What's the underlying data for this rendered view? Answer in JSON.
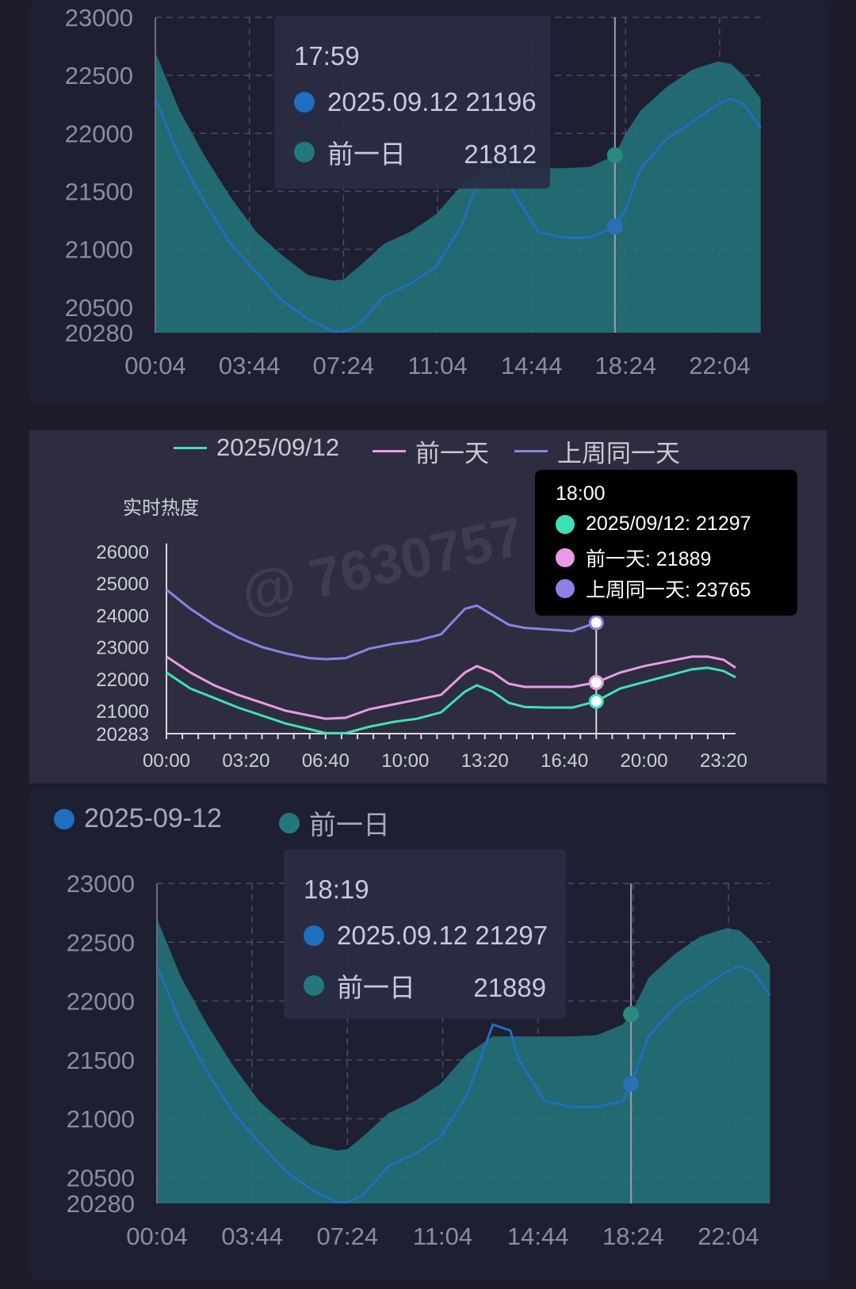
{
  "chart_data": [
    {
      "type": "area",
      "x_ticks": [
        "00:04",
        "03:44",
        "07:24",
        "11:04",
        "14:44",
        "18:24",
        "22:04"
      ],
      "y_ticks": [
        23000,
        22500,
        22000,
        21500,
        21000,
        20500,
        20280
      ],
      "ylim": [
        20280,
        23000
      ],
      "grid": true,
      "series": [
        {
          "name": "2025.09.12",
          "color": "#1f6fc0",
          "x": [
            "00:04",
            "01:00",
            "02:00",
            "03:00",
            "04:00",
            "05:00",
            "06:00",
            "07:00",
            "07:24",
            "08:00",
            "09:00",
            "10:00",
            "11:00",
            "12:00",
            "13:00",
            "13:40",
            "14:00",
            "15:00",
            "16:00",
            "17:00",
            "17:59",
            "18:24",
            "19:00",
            "20:00",
            "21:00",
            "22:00",
            "22:30",
            "23:00",
            "23:40"
          ],
          "values": [
            22300,
            21800,
            21400,
            21050,
            20800,
            20560,
            20400,
            20290,
            20290,
            20350,
            20600,
            20700,
            20850,
            21200,
            21800,
            21750,
            21500,
            21150,
            21100,
            21100,
            21196,
            21350,
            21700,
            21950,
            22100,
            22250,
            22300,
            22250,
            22050
          ]
        },
        {
          "name": "前一日",
          "color": "#24777d",
          "x": [
            "00:04",
            "01:00",
            "02:00",
            "03:00",
            "04:00",
            "05:00",
            "06:00",
            "07:00",
            "07:24",
            "08:00",
            "09:00",
            "10:00",
            "11:00",
            "12:00",
            "13:00",
            "14:00",
            "15:00",
            "16:00",
            "17:00",
            "17:59",
            "18:24",
            "19:00",
            "20:00",
            "21:00",
            "22:00",
            "22:30",
            "23:00",
            "23:40"
          ],
          "values": [
            22700,
            22200,
            21800,
            21450,
            21150,
            20950,
            20780,
            20730,
            20740,
            20850,
            21050,
            21150,
            21300,
            21550,
            21700,
            21700,
            21700,
            21700,
            21710,
            21812,
            22000,
            22200,
            22400,
            22550,
            22620,
            22600,
            22500,
            22300
          ]
        }
      ],
      "tooltip": {
        "time": "17:59",
        "rows": [
          {
            "label": "2025.09.12 21196"
          },
          {
            "label": "前一日        21812"
          }
        ]
      }
    },
    {
      "type": "line",
      "ylabel": "实时热度",
      "x_ticks": [
        "00:00",
        "03:20",
        "06:40",
        "10:00",
        "13:20",
        "16:40",
        "20:00",
        "23:20"
      ],
      "y_ticks": [
        26000,
        25000,
        24000,
        23000,
        22000,
        21000,
        20283
      ],
      "ylim": [
        20283,
        26000
      ],
      "series": [
        {
          "name": "2025/09/12",
          "color": "#3fe0b6",
          "x": [
            "00:00",
            "01:00",
            "02:00",
            "03:00",
            "04:00",
            "05:00",
            "06:00",
            "06:40",
            "07:30",
            "08:30",
            "09:30",
            "10:30",
            "11:30",
            "12:30",
            "13:00",
            "13:40",
            "14:20",
            "15:00",
            "16:00",
            "17:00",
            "18:00",
            "19:00",
            "20:00",
            "21:00",
            "22:00",
            "22:40",
            "23:20",
            "23:50"
          ],
          "values": [
            22200,
            21700,
            21400,
            21100,
            20850,
            20600,
            20420,
            20300,
            20300,
            20500,
            20650,
            20750,
            20950,
            21600,
            21800,
            21600,
            21250,
            21120,
            21100,
            21100,
            21297,
            21700,
            21900,
            22100,
            22300,
            22350,
            22250,
            22050
          ]
        },
        {
          "name": "前一天",
          "color": "#e89be3",
          "x": [
            "00:00",
            "01:00",
            "02:00",
            "03:00",
            "04:00",
            "05:00",
            "06:00",
            "06:40",
            "07:30",
            "08:30",
            "09:30",
            "10:30",
            "11:30",
            "12:30",
            "13:00",
            "13:40",
            "14:20",
            "15:00",
            "16:00",
            "17:00",
            "18:00",
            "19:00",
            "20:00",
            "21:00",
            "22:00",
            "22:40",
            "23:20",
            "23:50"
          ],
          "values": [
            22700,
            22200,
            21800,
            21500,
            21250,
            21000,
            20850,
            20750,
            20780,
            21050,
            21200,
            21350,
            21500,
            22200,
            22400,
            22200,
            21850,
            21750,
            21750,
            21750,
            21889,
            22200,
            22400,
            22550,
            22700,
            22700,
            22600,
            22350
          ]
        },
        {
          "name": "上周同一天",
          "color": "#8a82e6",
          "x": [
            "00:00",
            "01:00",
            "02:00",
            "03:00",
            "04:00",
            "05:00",
            "06:00",
            "06:40",
            "07:30",
            "08:30",
            "09:30",
            "10:30",
            "11:30",
            "12:30",
            "13:00",
            "13:40",
            "14:20",
            "15:00",
            "16:00",
            "17:00",
            "18:00"
          ],
          "values": [
            24800,
            24200,
            23700,
            23300,
            23000,
            22800,
            22650,
            22620,
            22650,
            22950,
            23100,
            23200,
            23400,
            24200,
            24300,
            24000,
            23700,
            23600,
            23550,
            23500,
            23765
          ]
        }
      ],
      "tooltip": {
        "time": "18:00",
        "rows": [
          {
            "label": "2025/09/12: 21297"
          },
          {
            "label": "前一天: 21889"
          },
          {
            "label": "上周同一天: 23765"
          }
        ]
      },
      "watermark": "@ 7630757"
    },
    {
      "type": "area",
      "legend": [
        "2025-09-12",
        "前一日"
      ],
      "x_ticks": [
        "00:04",
        "03:44",
        "07:24",
        "11:04",
        "14:44",
        "18:24",
        "22:04"
      ],
      "y_ticks": [
        23000,
        22500,
        22000,
        21500,
        21000,
        20500,
        20280
      ],
      "ylim": [
        20280,
        23000
      ],
      "grid": true,
      "series": [
        {
          "name": "2025-09-12",
          "color": "#1f6fc0",
          "x": [
            "00:04",
            "01:00",
            "02:00",
            "03:00",
            "04:00",
            "05:00",
            "06:00",
            "07:00",
            "07:24",
            "08:00",
            "09:00",
            "10:00",
            "11:00",
            "12:00",
            "13:00",
            "13:40",
            "14:00",
            "15:00",
            "16:00",
            "17:00",
            "18:00",
            "18:19",
            "19:00",
            "20:00",
            "21:00",
            "22:00",
            "22:30",
            "23:00",
            "23:40"
          ],
          "values": [
            22300,
            21800,
            21400,
            21050,
            20800,
            20560,
            20400,
            20290,
            20290,
            20350,
            20600,
            20700,
            20850,
            21200,
            21800,
            21750,
            21500,
            21150,
            21100,
            21100,
            21150,
            21297,
            21700,
            21950,
            22100,
            22250,
            22300,
            22250,
            22050
          ]
        },
        {
          "name": "前一日",
          "color": "#24777d",
          "x": [
            "00:04",
            "01:00",
            "02:00",
            "03:00",
            "04:00",
            "05:00",
            "06:00",
            "07:00",
            "07:24",
            "08:00",
            "09:00",
            "10:00",
            "11:00",
            "12:00",
            "13:00",
            "14:00",
            "15:00",
            "16:00",
            "17:00",
            "18:00",
            "18:19",
            "19:00",
            "20:00",
            "21:00",
            "22:00",
            "22:30",
            "23:00",
            "23:40"
          ],
          "values": [
            22700,
            22200,
            21800,
            21450,
            21150,
            20950,
            20780,
            20730,
            20740,
            20850,
            21050,
            21150,
            21300,
            21550,
            21700,
            21700,
            21700,
            21700,
            21710,
            21800,
            21889,
            22200,
            22400,
            22550,
            22620,
            22600,
            22500,
            22300
          ]
        }
      ],
      "tooltip": {
        "time": "18:19",
        "rows": [
          {
            "label": "2025.09.12 21297"
          },
          {
            "label": "前一日        21889"
          }
        ]
      }
    }
  ]
}
